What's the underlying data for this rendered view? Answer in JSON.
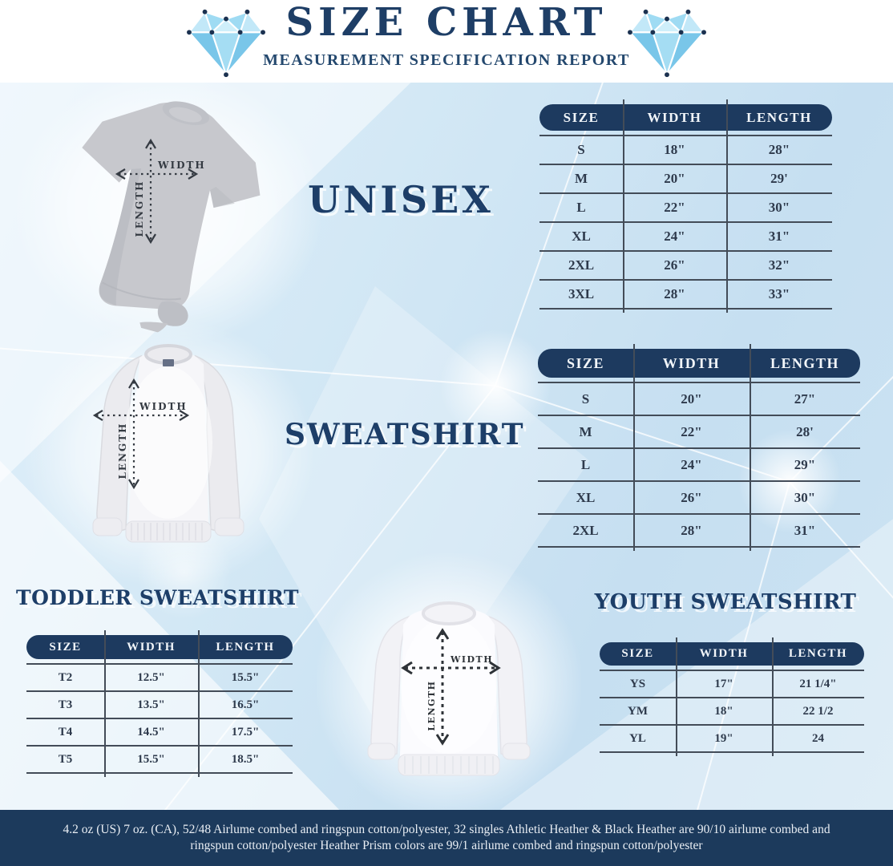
{
  "header": {
    "title": "SIZE CHART",
    "subtitle": "MEASUREMENT SPECIFICATION REPORT",
    "diamond_icon": "faceted-diamond",
    "colors": {
      "navy": "#1e3e66",
      "diamond_blue": "#8bcfee"
    }
  },
  "diagram_labels": {
    "width": "WIDTH",
    "length": "LENGTH"
  },
  "sections": {
    "unisex": {
      "title": "UNISEX"
    },
    "sweatshirt": {
      "title": "SWEATSHIRT"
    },
    "toddler": {
      "title": "TODDLER SWEATSHIRT"
    },
    "youth": {
      "title": "YOUTH SWEATSHIRT"
    }
  },
  "tables": {
    "unisex": {
      "headers": [
        "SIZE",
        "WIDTH",
        "LENGTH"
      ],
      "rows": [
        [
          "S",
          "18\"",
          "28\""
        ],
        [
          "M",
          "20\"",
          "29'"
        ],
        [
          "L",
          "22\"",
          "30\""
        ],
        [
          "XL",
          "24\"",
          "31\""
        ],
        [
          "2XL",
          "26\"",
          "32\""
        ],
        [
          "3XL",
          "28\"",
          "33\""
        ]
      ]
    },
    "sweatshirt": {
      "headers": [
        "SIZE",
        "WIDTH",
        "LENGTH"
      ],
      "rows": [
        [
          "S",
          "20\"",
          "27\""
        ],
        [
          "M",
          "22\"",
          "28'"
        ],
        [
          "L",
          "24\"",
          "29\""
        ],
        [
          "XL",
          "26\"",
          "30\""
        ],
        [
          "2XL",
          "28\"",
          "31\""
        ]
      ]
    },
    "toddler": {
      "headers": [
        "SIZE",
        "WIDTH",
        "LENGTH"
      ],
      "rows": [
        [
          "T2",
          "12.5\"",
          "15.5\""
        ],
        [
          "T3",
          "13.5\"",
          "16.5\""
        ],
        [
          "T4",
          "14.5\"",
          "17.5\""
        ],
        [
          "T5",
          "15.5\"",
          "18.5\""
        ]
      ]
    },
    "youth": {
      "headers": [
        "SIZE",
        "WIDTH",
        "LENGTH"
      ],
      "rows": [
        [
          "YS",
          "17\"",
          "21 1/4\""
        ],
        [
          "YM",
          "18\"",
          "22 1/2"
        ],
        [
          "YL",
          "19\"",
          "24"
        ]
      ]
    }
  },
  "footer": {
    "line1": "4.2 oz (US) 7 oz. (CA), 52/48 Airlume combed and ringspun cotton/polyester, 32 singles Athletic Heather & Black Heather are 90/10 airlume combed and",
    "line2": "ringspun cotton/polyester Heather Prism colors are 99/1 airlume combed and ringspun cotton/polyester"
  }
}
